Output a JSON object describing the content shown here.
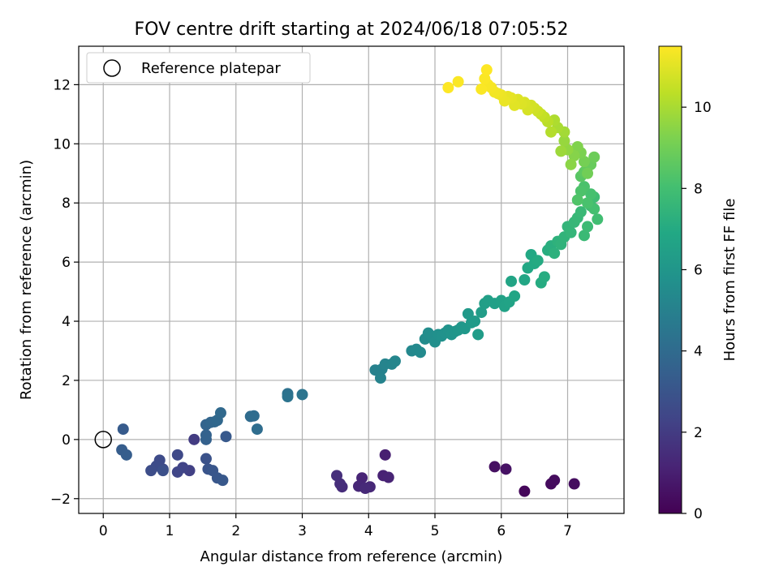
{
  "chart_data": {
    "type": "scatter",
    "title": "FOV centre drift starting at 2024/06/18 07:05:52",
    "xlabel": "Angular distance from reference (arcmin)",
    "ylabel": "Rotation from reference (arcmin)",
    "xlim": [
      -0.37,
      7.85
    ],
    "ylim": [
      -2.5,
      13.3
    ],
    "xticks": [
      0,
      1,
      2,
      3,
      4,
      5,
      6,
      7
    ],
    "yticks": [
      -2,
      0,
      2,
      4,
      6,
      8,
      10,
      12
    ],
    "grid": true,
    "legend": {
      "placement": "upper-left",
      "entries": [
        "Reference platepar"
      ]
    },
    "colorbar": {
      "label": "Hours from first FF file",
      "min": 0,
      "max": 11.5,
      "ticks": [
        0,
        2,
        4,
        6,
        8,
        10
      ],
      "colormap": "viridis"
    },
    "reference_point": {
      "x": 0,
      "y": 0
    },
    "series": [
      {
        "points": [
          [
            6.35,
            -1.75,
            0.2
          ],
          [
            6.75,
            -1.5,
            0.3
          ],
          [
            6.8,
            -1.38,
            0.35
          ],
          [
            7.1,
            -1.5,
            0.4
          ],
          [
            5.9,
            -0.92,
            0.5
          ],
          [
            6.07,
            -1.0,
            0.55
          ],
          [
            4.25,
            -0.52,
            1.0
          ],
          [
            4.22,
            -1.22,
            1.1
          ],
          [
            4.3,
            -1.28,
            1.15
          ],
          [
            3.9,
            -1.3,
            1.2
          ],
          [
            3.85,
            -1.58,
            1.25
          ],
          [
            4.02,
            -1.6,
            1.3
          ],
          [
            3.95,
            -1.65,
            1.35
          ],
          [
            3.6,
            -1.6,
            1.45
          ],
          [
            3.57,
            -1.5,
            1.5
          ],
          [
            3.52,
            -1.22,
            1.55
          ],
          [
            1.37,
            0.0,
            2.0
          ],
          [
            1.3,
            -1.05,
            2.2
          ],
          [
            1.2,
            -0.95,
            2.3
          ],
          [
            1.12,
            -1.1,
            2.4
          ],
          [
            1.12,
            -0.52,
            2.5
          ],
          [
            0.9,
            -1.0,
            2.55
          ],
          [
            0.85,
            -0.7,
            2.6
          ],
          [
            0.8,
            -0.9,
            2.65
          ],
          [
            0.72,
            -1.05,
            2.7
          ],
          [
            0.9,
            -1.05,
            2.8
          ],
          [
            1.55,
            -0.65,
            2.9
          ],
          [
            1.58,
            -1.0,
            3.0
          ],
          [
            1.65,
            -1.05,
            3.05
          ],
          [
            1.72,
            -1.3,
            3.1
          ],
          [
            1.8,
            -1.38,
            3.15
          ],
          [
            1.85,
            0.1,
            3.2
          ],
          [
            0.3,
            0.35,
            3.3
          ],
          [
            0.28,
            -0.35,
            3.35
          ],
          [
            0.35,
            -0.52,
            3.4
          ],
          [
            1.55,
            0.0,
            3.55
          ],
          [
            1.55,
            0.15,
            3.6
          ],
          [
            1.55,
            0.5,
            3.7
          ],
          [
            1.62,
            0.58,
            3.75
          ],
          [
            1.68,
            0.6,
            3.8
          ],
          [
            1.72,
            0.65,
            3.85
          ],
          [
            1.77,
            0.9,
            3.9
          ],
          [
            2.22,
            0.78,
            4.0
          ],
          [
            2.27,
            0.8,
            4.05
          ],
          [
            2.32,
            0.35,
            4.1
          ],
          [
            2.78,
            1.55,
            4.3
          ],
          [
            2.78,
            1.45,
            4.35
          ],
          [
            3.0,
            1.52,
            4.4
          ],
          [
            4.1,
            2.35,
            5.0
          ],
          [
            4.2,
            2.38,
            5.05
          ],
          [
            4.18,
            2.08,
            5.1
          ],
          [
            4.25,
            2.55,
            5.15
          ],
          [
            4.35,
            2.55,
            5.2
          ],
          [
            4.4,
            2.65,
            5.25
          ],
          [
            4.65,
            3.0,
            5.35
          ],
          [
            4.72,
            3.05,
            5.4
          ],
          [
            4.78,
            2.95,
            5.45
          ],
          [
            4.85,
            3.4,
            5.5
          ],
          [
            4.9,
            3.6,
            5.55
          ],
          [
            4.95,
            3.5,
            5.6
          ],
          [
            5.0,
            3.3,
            5.65
          ],
          [
            5.05,
            3.55,
            5.7
          ],
          [
            5.1,
            3.5,
            5.75
          ],
          [
            5.15,
            3.6,
            5.8
          ],
          [
            5.2,
            3.7,
            5.85
          ],
          [
            5.25,
            3.55,
            5.9
          ],
          [
            5.3,
            3.65,
            5.95
          ],
          [
            5.35,
            3.7,
            6.0
          ],
          [
            5.4,
            3.8,
            6.05
          ],
          [
            5.45,
            3.75,
            6.1
          ],
          [
            5.5,
            4.25,
            6.15
          ],
          [
            5.55,
            3.95,
            6.2
          ],
          [
            5.6,
            4.0,
            6.25
          ],
          [
            5.65,
            3.55,
            6.3
          ],
          [
            5.7,
            4.3,
            6.35
          ],
          [
            5.75,
            4.6,
            6.4
          ],
          [
            5.8,
            4.7,
            6.45
          ],
          [
            5.9,
            4.6,
            6.5
          ],
          [
            6.0,
            4.7,
            6.55
          ],
          [
            6.05,
            4.5,
            6.6
          ],
          [
            6.12,
            4.65,
            6.65
          ],
          [
            6.15,
            5.35,
            6.7
          ],
          [
            6.2,
            4.85,
            6.75
          ],
          [
            6.35,
            5.4,
            6.8
          ],
          [
            6.4,
            5.8,
            6.85
          ],
          [
            6.45,
            6.25,
            6.9
          ],
          [
            6.5,
            5.95,
            6.95
          ],
          [
            6.55,
            6.05,
            7.0
          ],
          [
            6.6,
            5.3,
            7.05
          ],
          [
            6.65,
            5.5,
            7.1
          ],
          [
            6.7,
            6.4,
            7.15
          ],
          [
            6.75,
            6.55,
            7.2
          ],
          [
            6.8,
            6.3,
            7.3
          ],
          [
            6.85,
            6.7,
            7.35
          ],
          [
            6.9,
            6.6,
            7.4
          ],
          [
            6.95,
            6.85,
            7.45
          ],
          [
            7.0,
            7.2,
            7.5
          ],
          [
            7.05,
            7.0,
            7.55
          ],
          [
            7.1,
            7.35,
            7.6
          ],
          [
            7.15,
            7.5,
            7.65
          ],
          [
            7.2,
            7.7,
            7.7
          ],
          [
            7.25,
            6.9,
            7.75
          ],
          [
            7.3,
            7.2,
            7.8
          ],
          [
            7.35,
            7.9,
            7.85
          ],
          [
            7.4,
            8.2,
            7.9
          ],
          [
            7.45,
            7.45,
            7.95
          ],
          [
            7.4,
            7.8,
            8.05
          ],
          [
            7.35,
            8.3,
            8.1
          ],
          [
            7.3,
            8.0,
            8.15
          ],
          [
            7.25,
            8.55,
            8.2
          ],
          [
            7.2,
            8.4,
            8.25
          ],
          [
            7.15,
            8.1,
            8.3
          ],
          [
            7.2,
            8.9,
            8.5
          ],
          [
            7.25,
            9.05,
            8.6
          ],
          [
            7.3,
            9.2,
            8.7
          ],
          [
            7.35,
            9.3,
            8.8
          ],
          [
            7.4,
            9.55,
            8.9
          ],
          [
            7.3,
            9.0,
            9.0
          ],
          [
            7.25,
            9.4,
            9.1
          ],
          [
            7.2,
            9.7,
            9.2
          ],
          [
            7.15,
            9.9,
            9.3
          ],
          [
            7.1,
            9.6,
            9.4
          ],
          [
            7.05,
            9.3,
            9.5
          ],
          [
            7.0,
            9.8,
            9.6
          ],
          [
            6.95,
            10.1,
            9.7
          ],
          [
            6.9,
            9.75,
            9.8
          ],
          [
            6.95,
            10.4,
            9.9
          ],
          [
            6.85,
            10.55,
            10.0
          ],
          [
            6.8,
            10.8,
            10.1
          ],
          [
            6.75,
            10.4,
            10.2
          ],
          [
            6.7,
            10.75,
            10.3
          ],
          [
            6.65,
            10.9,
            10.4
          ],
          [
            6.6,
            11.0,
            10.5
          ],
          [
            6.55,
            11.1,
            10.6
          ],
          [
            6.5,
            11.2,
            10.7
          ],
          [
            6.45,
            11.3,
            10.75
          ],
          [
            6.4,
            11.15,
            10.8
          ],
          [
            6.35,
            11.4,
            10.85
          ],
          [
            6.3,
            11.35,
            10.9
          ],
          [
            6.25,
            11.5,
            10.95
          ],
          [
            6.2,
            11.3,
            11.0
          ],
          [
            6.15,
            11.55,
            11.05
          ],
          [
            6.1,
            11.6,
            11.1
          ],
          [
            6.05,
            11.45,
            11.15
          ],
          [
            6.0,
            11.65,
            11.2
          ],
          [
            5.95,
            11.7,
            11.25
          ],
          [
            5.9,
            11.75,
            11.3
          ],
          [
            5.85,
            11.9,
            11.35
          ],
          [
            5.8,
            12.0,
            11.4
          ],
          [
            5.75,
            12.2,
            11.45
          ],
          [
            5.78,
            12.5,
            11.5
          ],
          [
            5.7,
            11.85,
            11.45
          ],
          [
            5.35,
            12.1,
            11.45
          ],
          [
            5.2,
            11.9,
            11.5
          ]
        ]
      }
    ]
  }
}
